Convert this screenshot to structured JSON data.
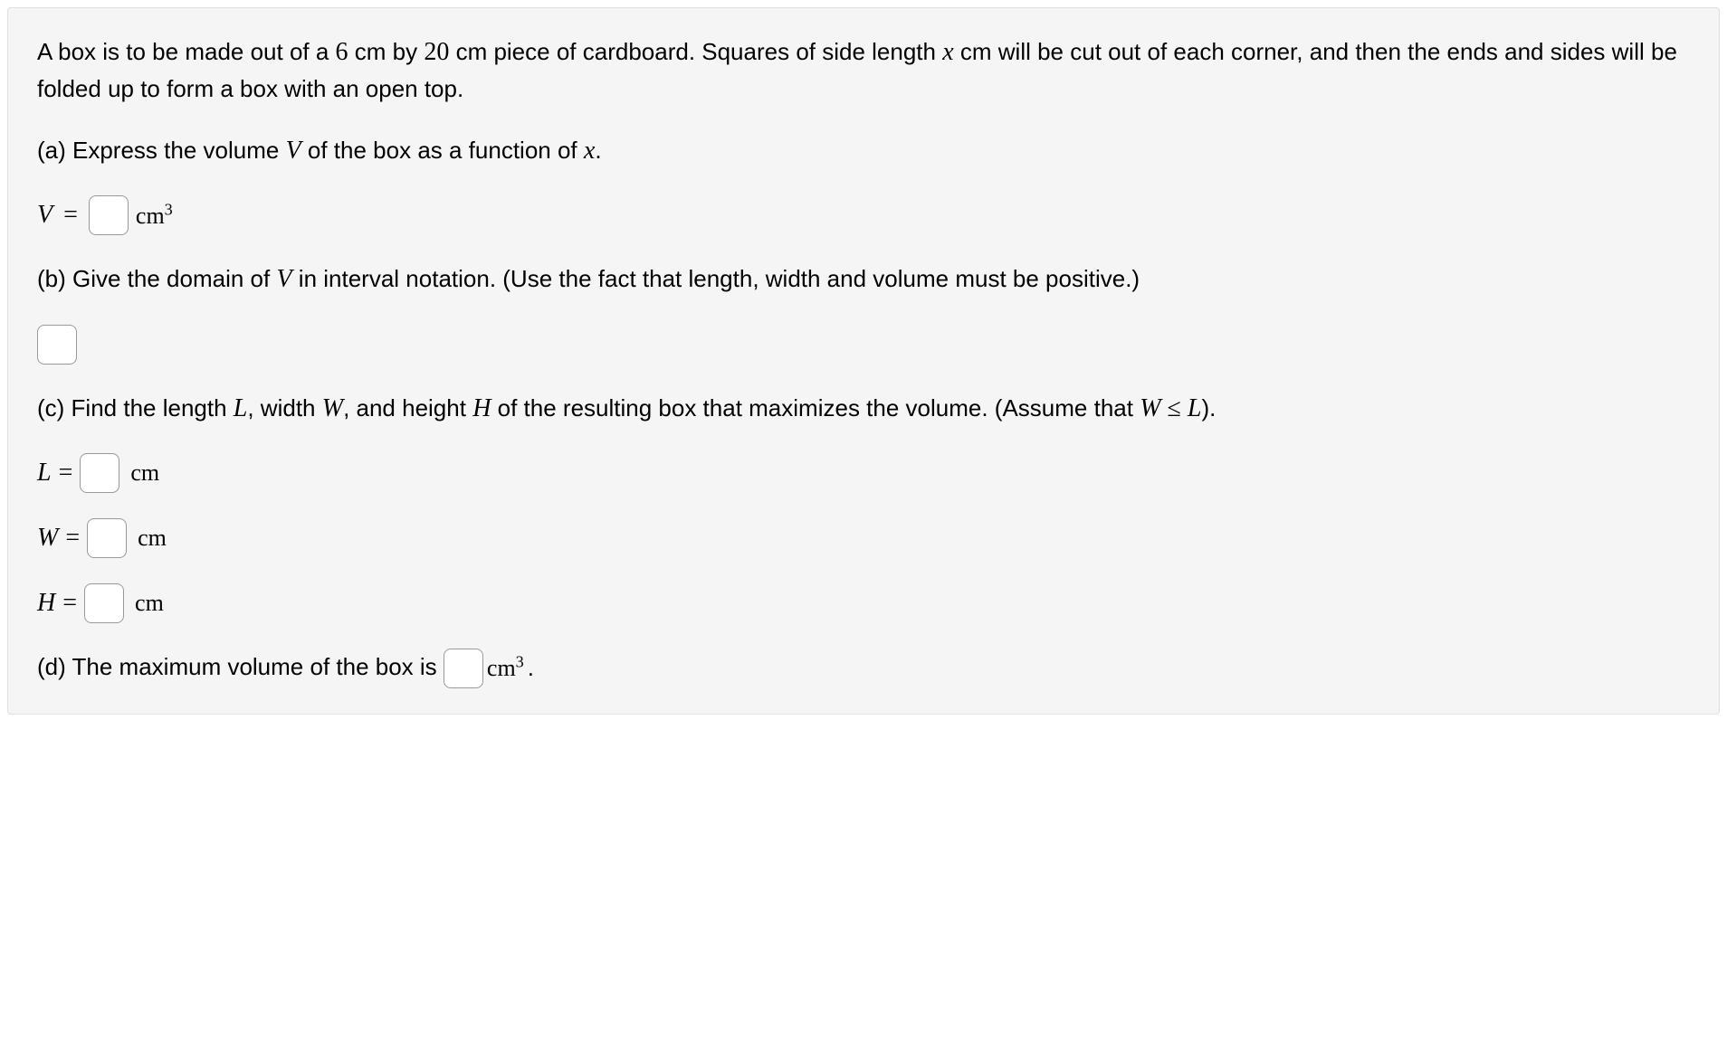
{
  "problem": {
    "intro_part1": "A box is to be made out of a ",
    "dim1": "6",
    "intro_part2": " cm by ",
    "dim2": "20",
    "intro_part3": " cm piece of cardboard. Squares of side length ",
    "var_x": "x",
    "intro_part4": " cm will be cut out of each corner, and then the ends and sides will be folded up to form a box with an open top."
  },
  "part_a": {
    "label": "(a) Express the volume ",
    "var_v": "V",
    "text2": " of the box as a function of ",
    "var_x": "x",
    "text3": ".",
    "eq_var": "V",
    "eq_equals": "=",
    "unit": "cm",
    "unit_exp": "3"
  },
  "part_b": {
    "label": "(b) Give the domain of ",
    "var_v": "V",
    "text2": " in interval notation. (Use the fact that length, width and volume must be positive.)"
  },
  "part_c": {
    "label": "(c) Find the length ",
    "var_l": "L",
    "text2": ", width ",
    "var_w": "W",
    "text3": ", and height ",
    "var_h": "H",
    "text4": " of the resulting box that maximizes the volume. (Assume that ",
    "var_w2": "W",
    "leq": " ≤ ",
    "var_l2": "L",
    "text5": ").",
    "l_var": "L",
    "l_equals": "=",
    "l_unit": "cm",
    "w_var": "W",
    "w_equals": "=",
    "w_unit": "cm",
    "h_var": "H",
    "h_equals": "=",
    "h_unit": "cm"
  },
  "part_d": {
    "label": "(d) The maximum volume of the box is ",
    "unit": "cm",
    "unit_exp": "3",
    "period": "."
  },
  "styling": {
    "background_color": "#f5f5f5",
    "border_color": "#e0e0e0",
    "text_color": "#000000",
    "input_border_color": "#999999",
    "input_background": "#ffffff",
    "body_font_size": 26,
    "math_font_size": 28,
    "math_font_family": "Times New Roman"
  }
}
